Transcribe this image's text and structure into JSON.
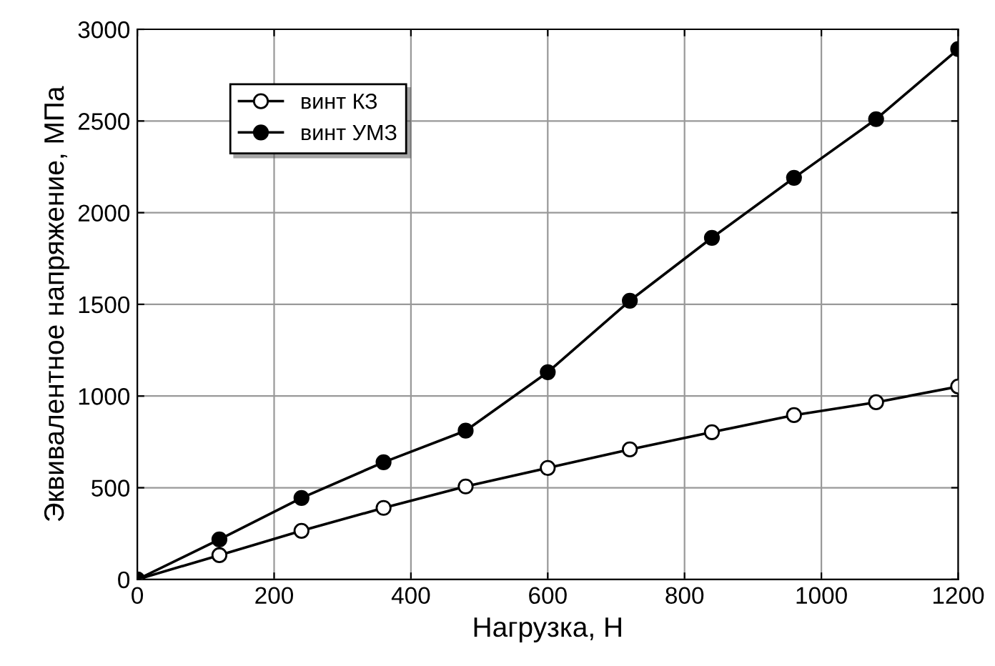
{
  "chart_data": {
    "type": "line",
    "xlabel": "Нагрузка, Н",
    "ylabel": "Эквивалентное напряжение, МПа",
    "x": [
      0,
      120,
      240,
      360,
      480,
      600,
      720,
      840,
      960,
      1080,
      1200
    ],
    "series": [
      {
        "name": "винт КЗ",
        "color": "#000000",
        "marker": "circle",
        "values": [
          0,
          132,
          265,
          390,
          507,
          608,
          709,
          803,
          896,
          966,
          1052
        ]
      },
      {
        "name": "винт УМЗ",
        "color": "#000000",
        "marker": "circle",
        "values": [
          0,
          218,
          444,
          639,
          811,
          1130,
          1520,
          1863,
          2190,
          2510,
          2892
        ]
      }
    ],
    "xlim": [
      0,
      1200
    ],
    "xticks": [
      0,
      200,
      400,
      600,
      800,
      1000,
      1200
    ],
    "ylim": [
      0,
      3000
    ],
    "yticks": [
      0,
      500,
      1000,
      1500,
      2000,
      2500,
      3000
    ],
    "grid": true,
    "legend": "top left",
    "line_style": "solid"
  }
}
